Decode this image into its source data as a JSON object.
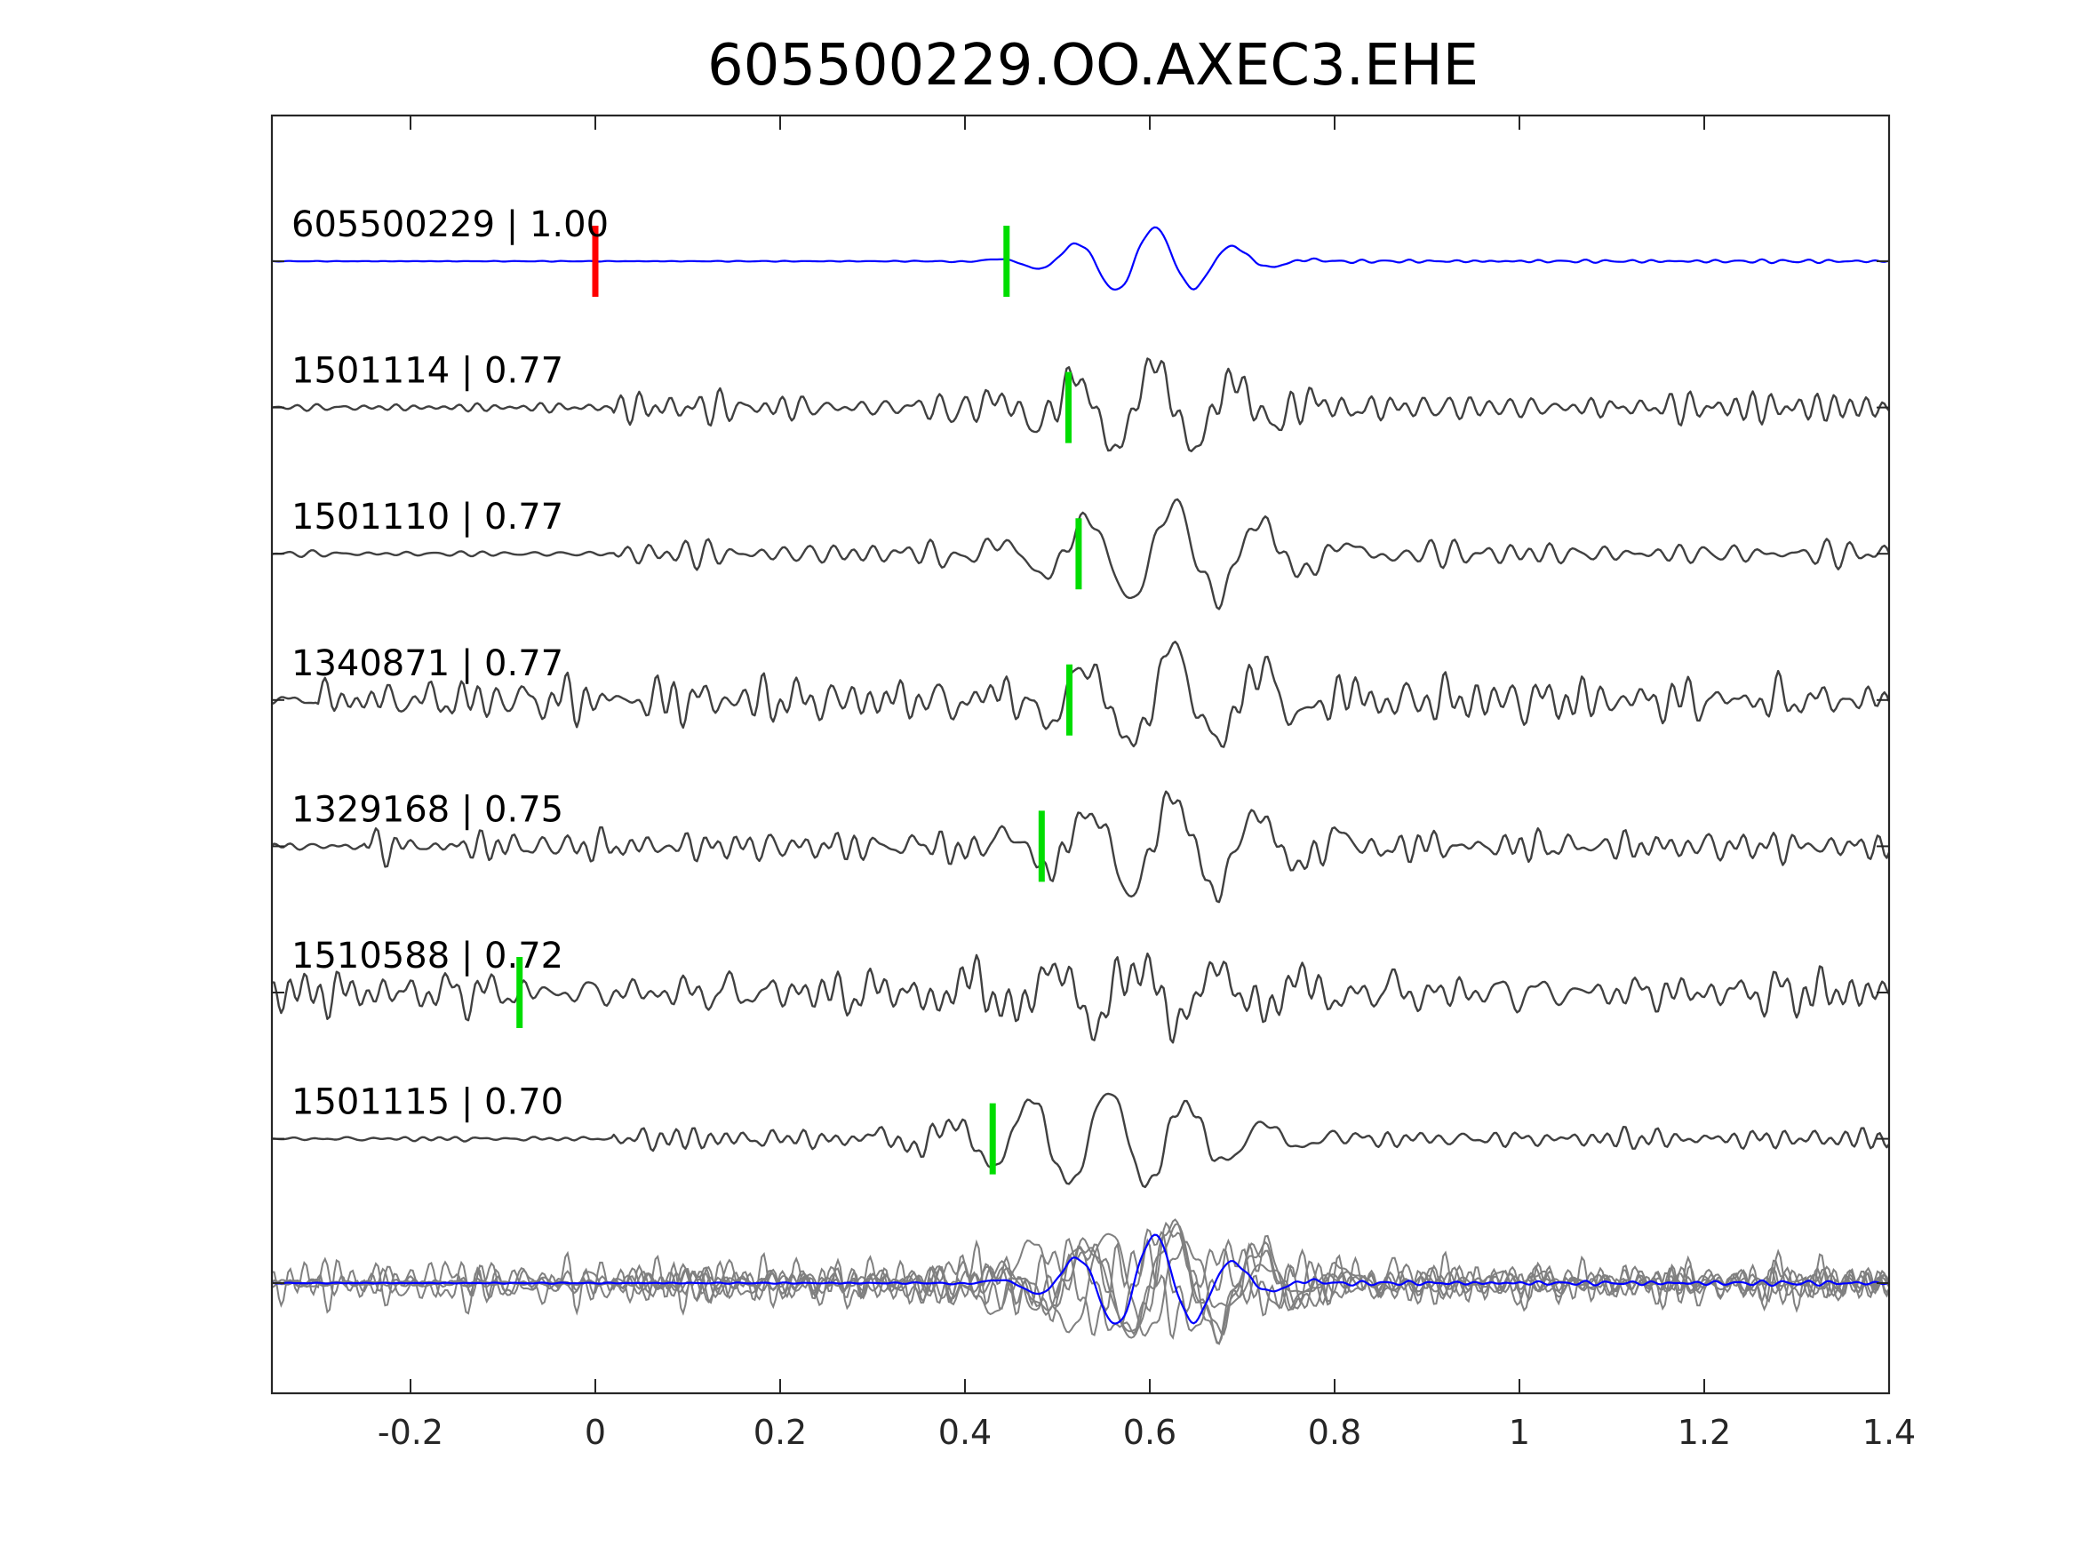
{
  "chart_data": {
    "type": "line",
    "title": "605500229.OO.AXEC3.EHE",
    "xlabel": "",
    "ylabel": "",
    "xlim": [
      -0.35,
      1.4
    ],
    "xticks": [
      -0.2,
      0,
      0.2,
      0.4,
      0.6,
      0.8,
      1,
      1.2,
      1.4
    ],
    "xtick_labels": [
      "-0.2",
      "0",
      "0.2",
      "0.4",
      "0.6",
      "0.8",
      "1",
      "1.2",
      "1.4"
    ],
    "grid": false,
    "colors": {
      "reference": "#0000ff",
      "template": "#404040",
      "overlay": "#808080",
      "pick_reference": "#ff0000",
      "pick_template": "#00dd00",
      "axes": "#262626"
    },
    "series": [
      {
        "name": "605500229",
        "label": "605500229 | 1.00",
        "kind": "reference",
        "pick_time": 0.0,
        "aligned_pick": 0.445,
        "signal": {
          "onset": 0.48,
          "center": 0.6,
          "period": 0.087,
          "duration": 0.1,
          "noise": 0.04,
          "burst": 0.9,
          "seed": 1
        }
      },
      {
        "name": "1501114",
        "label": "1501114 | 0.77",
        "kind": "template",
        "pick_time": 0.512,
        "signal": {
          "onset": 0.02,
          "center": 0.6,
          "period": 0.087,
          "duration": 0.13,
          "noise": 0.3,
          "burst": 0.9,
          "seed": 2
        }
      },
      {
        "name": "1501110",
        "label": "1501110 | 0.77",
        "kind": "template",
        "pick_time": 0.523,
        "signal": {
          "onset": 0.02,
          "center": 0.62,
          "period": 0.095,
          "duration": 0.15,
          "noise": 0.25,
          "burst": 1.0,
          "seed": 3
        }
      },
      {
        "name": "1340871",
        "label": "1340871 | 0.77",
        "kind": "template",
        "pick_time": 0.513,
        "signal": {
          "onset": -0.3,
          "center": 0.62,
          "period": 0.095,
          "duration": 0.14,
          "noise": 0.35,
          "burst": 1.0,
          "seed": 4
        }
      },
      {
        "name": "1329168",
        "label": "1329168 | 0.75",
        "kind": "template",
        "pick_time": 0.483,
        "signal": {
          "onset": -0.25,
          "center": 0.62,
          "period": 0.092,
          "duration": 0.15,
          "noise": 0.3,
          "burst": 1.0,
          "seed": 5
        }
      },
      {
        "name": "1510588",
        "label": "1510588 | 0.72",
        "kind": "template",
        "pick_time": -0.082,
        "signal": {
          "onset": -0.35,
          "center": 0.58,
          "period": 0.09,
          "duration": 0.2,
          "noise": 0.45,
          "burst": 0.6,
          "seed": 6
        }
      },
      {
        "name": "1501115",
        "label": "1501115 | 0.70",
        "kind": "template",
        "pick_time": 0.43,
        "signal": {
          "onset": 0.02,
          "center": 0.55,
          "period": 0.085,
          "duration": 0.16,
          "noise": 0.25,
          "burst": 1.0,
          "seed": 7
        }
      }
    ]
  }
}
